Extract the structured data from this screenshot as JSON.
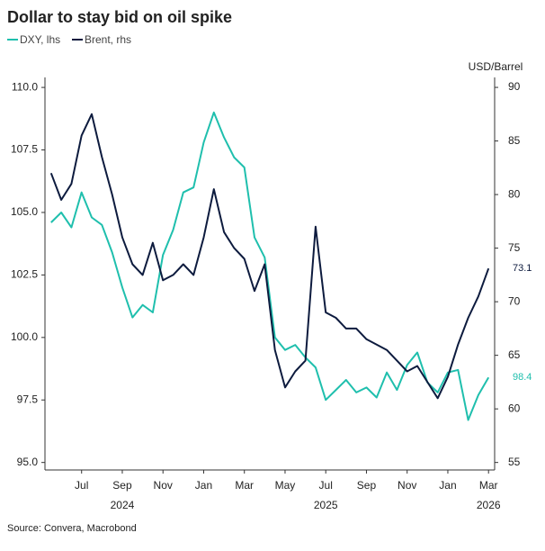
{
  "chart_data": {
    "type": "line",
    "title": "Dollar to stay bid on oil spike",
    "y2_label": "USD/Barrel",
    "source": "Source: Convera, Macrobond",
    "x": [
      4.5,
      5,
      5.5,
      6,
      6.5,
      7,
      7.5,
      8,
      8.5,
      9,
      9.5,
      10,
      10.5,
      11,
      11.5,
      12,
      12.5,
      13,
      13.5,
      14,
      14.5,
      15,
      15.5,
      16,
      16.5,
      17,
      17.5,
      18,
      18.5,
      19,
      19.5,
      20,
      20.5,
      21,
      21.5,
      22,
      22.5,
      23,
      23.5,
      24,
      24.5,
      25,
      25.5,
      26
    ],
    "series": [
      {
        "name": "DXY, lhs",
        "color": "#1fbfad",
        "axis": "y",
        "values": [
          104.6,
          105.0,
          104.4,
          105.8,
          104.8,
          104.5,
          103.4,
          102.0,
          100.8,
          101.3,
          101.0,
          103.3,
          104.3,
          105.8,
          106.0,
          107.8,
          109.0,
          108.0,
          107.2,
          106.8,
          104.0,
          103.2,
          100.0,
          99.5,
          99.7,
          99.2,
          98.8,
          97.5,
          97.9,
          98.3,
          97.8,
          98.0,
          97.6,
          98.6,
          97.9,
          98.9,
          99.4,
          98.2,
          97.8,
          98.6,
          98.7,
          96.7,
          97.7,
          98.4
        ]
      },
      {
        "name": "Brent, rhs",
        "color": "#0d1b3e",
        "axis": "y2",
        "values": [
          82.0,
          79.5,
          81.0,
          85.5,
          87.5,
          83.5,
          80.0,
          76.0,
          73.5,
          72.5,
          75.5,
          72.0,
          72.5,
          73.5,
          72.5,
          76.0,
          80.5,
          76.5,
          75.0,
          74.0,
          71.0,
          73.5,
          65.5,
          62.0,
          63.5,
          64.5,
          77.0,
          69.0,
          68.5,
          67.5,
          67.5,
          66.5,
          66.0,
          65.5,
          64.5,
          63.5,
          64.0,
          62.5,
          61.0,
          63.0,
          66.0,
          68.5,
          70.5,
          73.1
        ]
      }
    ],
    "xlim": [
      4.2,
      26.3
    ],
    "xticks": [
      {
        "value": 6,
        "label": "Jul"
      },
      {
        "value": 8,
        "label": "Sep"
      },
      {
        "value": 10,
        "label": "Nov"
      },
      {
        "value": 12,
        "label": "Jan"
      },
      {
        "value": 14,
        "label": "Mar"
      },
      {
        "value": 16,
        "label": "May"
      },
      {
        "value": 18,
        "label": "Jul"
      },
      {
        "value": 20,
        "label": "Sep"
      },
      {
        "value": 22,
        "label": "Nov"
      },
      {
        "value": 24,
        "label": "Jan"
      },
      {
        "value": 26,
        "label": "Mar"
      }
    ],
    "x_year_labels": [
      {
        "value": 8,
        "label": "2024"
      },
      {
        "value": 18,
        "label": "2025"
      },
      {
        "value": 26,
        "label": "2026"
      }
    ],
    "ylim": [
      94.7,
      110.4
    ],
    "yticks": [
      {
        "value": 95,
        "label": "95.0"
      },
      97.5,
      {
        "value": 100,
        "label": "100.0"
      },
      102.5,
      {
        "value": 105,
        "label": "105.0"
      },
      107.5,
      {
        "value": 110,
        "label": "110.0"
      }
    ],
    "y2lim": [
      54.3,
      90.93
    ],
    "y2ticks": [
      55,
      60,
      65,
      70,
      75,
      80,
      85,
      90
    ],
    "grid": false
  }
}
